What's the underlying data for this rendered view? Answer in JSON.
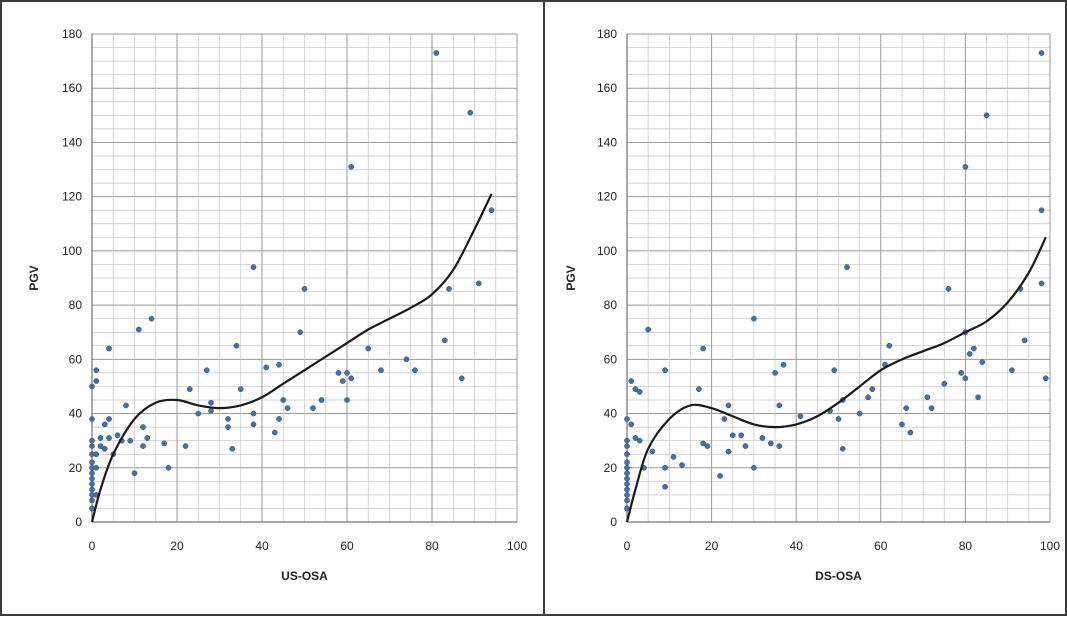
{
  "chart_data": [
    {
      "type": "scatter",
      "title": "",
      "xlabel": "US-OSA",
      "ylabel": "PGV",
      "xlim": [
        0,
        100
      ],
      "ylim": [
        0,
        180
      ],
      "xticks": [
        0,
        20,
        40,
        60,
        80,
        100
      ],
      "yticks": [
        0,
        20,
        40,
        60,
        80,
        100,
        120,
        140,
        160,
        180
      ],
      "grid": true,
      "marker_color": "#4a6fa5",
      "trend_color": "#1a1a1a",
      "series": [
        {
          "type": "scatter",
          "points": [
            [
              0,
              5
            ],
            [
              0,
              8
            ],
            [
              0,
              10
            ],
            [
              0,
              12
            ],
            [
              0,
              14
            ],
            [
              0,
              16
            ],
            [
              0,
              18
            ],
            [
              0,
              20
            ],
            [
              0,
              22
            ],
            [
              0,
              25
            ],
            [
              0,
              28
            ],
            [
              0,
              30
            ],
            [
              0,
              38
            ],
            [
              0,
              50
            ],
            [
              1,
              52
            ],
            [
              1,
              56
            ],
            [
              1,
              10
            ],
            [
              1,
              20
            ],
            [
              1,
              25
            ],
            [
              2,
              28
            ],
            [
              2,
              31
            ],
            [
              3,
              27
            ],
            [
              3,
              36
            ],
            [
              4,
              38
            ],
            [
              4,
              31
            ],
            [
              4,
              64
            ],
            [
              5,
              25
            ],
            [
              6,
              32
            ],
            [
              7,
              30
            ],
            [
              8,
              43
            ],
            [
              9,
              30
            ],
            [
              10,
              18
            ],
            [
              11,
              71
            ],
            [
              12,
              28
            ],
            [
              12,
              35
            ],
            [
              13,
              31
            ],
            [
              14,
              75
            ],
            [
              17,
              29
            ],
            [
              18,
              20
            ],
            [
              22,
              28
            ],
            [
              23,
              49
            ],
            [
              25,
              40
            ],
            [
              27,
              56
            ],
            [
              28,
              44
            ],
            [
              28,
              41
            ],
            [
              32,
              35
            ],
            [
              32,
              38
            ],
            [
              33,
              27
            ],
            [
              34,
              65
            ],
            [
              35,
              49
            ],
            [
              38,
              94
            ],
            [
              38,
              36
            ],
            [
              38,
              40
            ],
            [
              41,
              57
            ],
            [
              43,
              33
            ],
            [
              44,
              58
            ],
            [
              44,
              38
            ],
            [
              45,
              45
            ],
            [
              46,
              42
            ],
            [
              49,
              70
            ],
            [
              50,
              86
            ],
            [
              52,
              42
            ],
            [
              54,
              45
            ],
            [
              58,
              55
            ],
            [
              59,
              52
            ],
            [
              60,
              45
            ],
            [
              60,
              55
            ],
            [
              61,
              131
            ],
            [
              61,
              53
            ],
            [
              65,
              64
            ],
            [
              68,
              56
            ],
            [
              74,
              60
            ],
            [
              76,
              56
            ],
            [
              81,
              173
            ],
            [
              83,
              67
            ],
            [
              84,
              86
            ],
            [
              87,
              53
            ],
            [
              89,
              151
            ],
            [
              91,
              88
            ],
            [
              94,
              115
            ]
          ]
        },
        {
          "type": "line",
          "name": "",
          "x": [
            0,
            2,
            5,
            10,
            15,
            20,
            25,
            30,
            35,
            40,
            45,
            50,
            55,
            60,
            65,
            70,
            75,
            80,
            85,
            90,
            94
          ],
          "y": [
            0,
            12,
            25,
            38,
            44,
            45,
            43,
            42,
            43,
            46,
            51,
            56,
            61,
            66,
            71,
            75,
            79,
            84,
            93,
            108,
            121
          ]
        }
      ]
    },
    {
      "type": "scatter",
      "title": "",
      "xlabel": "DS-OSA",
      "ylabel": "PGV",
      "xlim": [
        0,
        100
      ],
      "ylim": [
        0,
        180
      ],
      "xticks": [
        0,
        20,
        40,
        60,
        80,
        100
      ],
      "yticks": [
        0,
        20,
        40,
        60,
        80,
        100,
        120,
        140,
        160,
        180
      ],
      "grid": true,
      "marker_color": "#4a6fa5",
      "trend_color": "#1a1a1a",
      "series": [
        {
          "type": "scatter",
          "points": [
            [
              0,
              5
            ],
            [
              0,
              8
            ],
            [
              0,
              10
            ],
            [
              0,
              12
            ],
            [
              0,
              14
            ],
            [
              0,
              16
            ],
            [
              0,
              18
            ],
            [
              0,
              20
            ],
            [
              0,
              22
            ],
            [
              0,
              25
            ],
            [
              0,
              28
            ],
            [
              0,
              30
            ],
            [
              0,
              38
            ],
            [
              1,
              52
            ],
            [
              1,
              36
            ],
            [
              2,
              49
            ],
            [
              2,
              31
            ],
            [
              3,
              48
            ],
            [
              3,
              30
            ],
            [
              4,
              20
            ],
            [
              5,
              71
            ],
            [
              6,
              26
            ],
            [
              9,
              56
            ],
            [
              9,
              20
            ],
            [
              9,
              13
            ],
            [
              11,
              24
            ],
            [
              13,
              21
            ],
            [
              17,
              49
            ],
            [
              18,
              64
            ],
            [
              18,
              29
            ],
            [
              19,
              28
            ],
            [
              22,
              17
            ],
            [
              23,
              38
            ],
            [
              24,
              43
            ],
            [
              24,
              26
            ],
            [
              25,
              32
            ],
            [
              27,
              32
            ],
            [
              28,
              28
            ],
            [
              30,
              75
            ],
            [
              30,
              20
            ],
            [
              32,
              31
            ],
            [
              34,
              29
            ],
            [
              35,
              55
            ],
            [
              36,
              43
            ],
            [
              36,
              28
            ],
            [
              37,
              58
            ],
            [
              41,
              39
            ],
            [
              48,
              41
            ],
            [
              49,
              56
            ],
            [
              50,
              38
            ],
            [
              51,
              45
            ],
            [
              51,
              27
            ],
            [
              52,
              94
            ],
            [
              55,
              40
            ],
            [
              57,
              46
            ],
            [
              58,
              49
            ],
            [
              61,
              58
            ],
            [
              62,
              65
            ],
            [
              65,
              36
            ],
            [
              66,
              42
            ],
            [
              67,
              33
            ],
            [
              71,
              46
            ],
            [
              72,
              42
            ],
            [
              75,
              51
            ],
            [
              76,
              86
            ],
            [
              79,
              55
            ],
            [
              80,
              131
            ],
            [
              80,
              70
            ],
            [
              80,
              53
            ],
            [
              81,
              62
            ],
            [
              82,
              64
            ],
            [
              83,
              46
            ],
            [
              84,
              59
            ],
            [
              85,
              150
            ],
            [
              91,
              56
            ],
            [
              93,
              86
            ],
            [
              94,
              67
            ],
            [
              98,
              173
            ],
            [
              98,
              88
            ],
            [
              98,
              115
            ],
            [
              99,
              53
            ]
          ]
        },
        {
          "type": "line",
          "name": "",
          "x": [
            0,
            2,
            5,
            10,
            15,
            20,
            25,
            30,
            35,
            40,
            45,
            50,
            55,
            60,
            65,
            70,
            75,
            80,
            85,
            90,
            95,
            99
          ],
          "y": [
            0,
            12,
            27,
            38,
            43,
            42,
            39,
            36,
            35,
            36,
            39,
            44,
            50,
            56,
            60,
            63,
            66,
            70,
            74,
            81,
            92,
            105
          ]
        }
      ]
    }
  ]
}
